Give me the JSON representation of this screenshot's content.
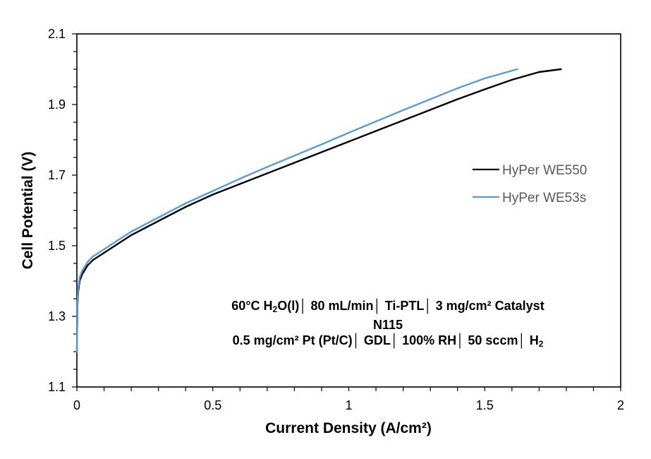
{
  "chart_data": {
    "type": "line",
    "xlabel": "Current Density (A/cm²)",
    "ylabel": "Cell Potential (V)",
    "xlim": [
      0,
      2
    ],
    "ylim": [
      1.1,
      2.1
    ],
    "x_ticks": [
      "0",
      "0.5",
      "1",
      "1.5",
      "2"
    ],
    "y_ticks": [
      "1.1",
      "1.3",
      "1.5",
      "1.7",
      "1.9",
      "2.1"
    ],
    "grid": false,
    "legend_position": "right",
    "series": [
      {
        "name": "HyPer WE550",
        "color": "#000000",
        "x": [
          0.0,
          0.002,
          0.005,
          0.01,
          0.02,
          0.04,
          0.06,
          0.1,
          0.15,
          0.2,
          0.3,
          0.4,
          0.5,
          0.6,
          0.7,
          0.8,
          0.9,
          1.0,
          1.1,
          1.2,
          1.3,
          1.4,
          1.5,
          1.6,
          1.7,
          1.78
        ],
        "y": [
          1.2,
          1.33,
          1.37,
          1.4,
          1.42,
          1.445,
          1.46,
          1.48,
          1.505,
          1.53,
          1.57,
          1.61,
          1.645,
          1.675,
          1.705,
          1.735,
          1.765,
          1.795,
          1.825,
          1.855,
          1.885,
          1.915,
          1.943,
          1.97,
          1.992,
          2.0
        ]
      },
      {
        "name": "HyPer WE53s",
        "color": "#5b9bd5",
        "x": [
          0.0,
          0.002,
          0.005,
          0.01,
          0.02,
          0.04,
          0.06,
          0.1,
          0.15,
          0.2,
          0.3,
          0.4,
          0.5,
          0.6,
          0.7,
          0.8,
          0.9,
          1.0,
          1.1,
          1.2,
          1.3,
          1.4,
          1.5,
          1.62
        ],
        "y": [
          1.2,
          1.34,
          1.38,
          1.41,
          1.43,
          1.455,
          1.47,
          1.49,
          1.515,
          1.54,
          1.58,
          1.62,
          1.655,
          1.69,
          1.723,
          1.755,
          1.787,
          1.82,
          1.852,
          1.884,
          1.915,
          1.946,
          1.974,
          2.0
        ]
      }
    ],
    "annotation": {
      "line1_a": "60°C H",
      "line1_sub": "2",
      "line1_b": "O(l)│ 80 mL/min│ Ti-PTL│ 3 mg/cm²  Catalyst",
      "line2": "N115",
      "line3_a": "0.5 mg/cm²  Pt (Pt/C)│ GDL│ 100%  RH│ 50 sccm│ H",
      "line3_sub": "2"
    }
  }
}
